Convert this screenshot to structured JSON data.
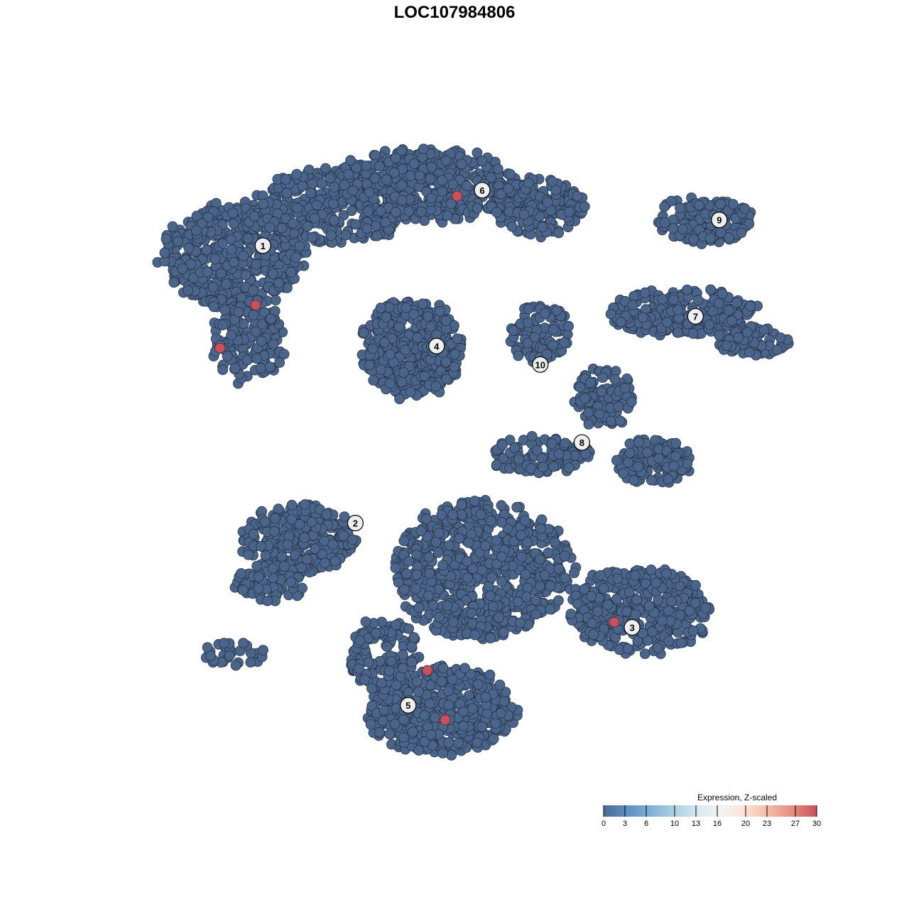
{
  "chart_data": {
    "type": "scatter",
    "title": "LOC107984806",
    "xlabel": "",
    "ylabel": "",
    "grid": false,
    "axes_visible": false,
    "point_color_default": "#4b6489",
    "point_color_high": "#c9515e",
    "clusters": [
      {
        "label": "1",
        "x": -31.7,
        "y": 31.3
      },
      {
        "label": "2",
        "x": -17.7,
        "y": -10.7
      },
      {
        "label": "3",
        "x": 24.2,
        "y": -26.5
      },
      {
        "label": "4",
        "x": -5.4,
        "y": 16.1
      },
      {
        "label": "5",
        "x": -9.7,
        "y": -38.3
      },
      {
        "label": "6",
        "x": 1.5,
        "y": 39.7
      },
      {
        "label": "7",
        "x": 33.8,
        "y": 20.6
      },
      {
        "label": "8",
        "x": 16.6,
        "y": 1.5
      },
      {
        "label": "9",
        "x": 37.4,
        "y": 35.2
      },
      {
        "label": "10",
        "x": 10.3,
        "y": 13.3
      }
    ],
    "high_expression_points": [
      {
        "x": -2.3,
        "y": 38.8,
        "value": 30
      },
      {
        "x": -32.8,
        "y": 22.3,
        "value": 30
      },
      {
        "x": -38.2,
        "y": 15.8,
        "value": 30
      },
      {
        "x": 21.5,
        "y": -25.7,
        "value": 30
      },
      {
        "x": -6.8,
        "y": -33.0,
        "value": 30
      },
      {
        "x": -4.1,
        "y": -40.5,
        "value": 30
      }
    ],
    "legend": {
      "title": "Expression, Z-scaled",
      "position": "bottom-right",
      "ticks": [
        "0",
        "3",
        "6",
        "10",
        "13",
        "16",
        "20",
        "23",
        "27",
        "30"
      ],
      "range": [
        0,
        30
      ],
      "colors": [
        "#4b6a95",
        "#5e8fc1",
        "#80b2d6",
        "#acd1e3",
        "#d9e8f0",
        "#f5f4f3",
        "#fbe1d3",
        "#f2b9a2",
        "#e28c7f",
        "#c9515e"
      ]
    }
  }
}
